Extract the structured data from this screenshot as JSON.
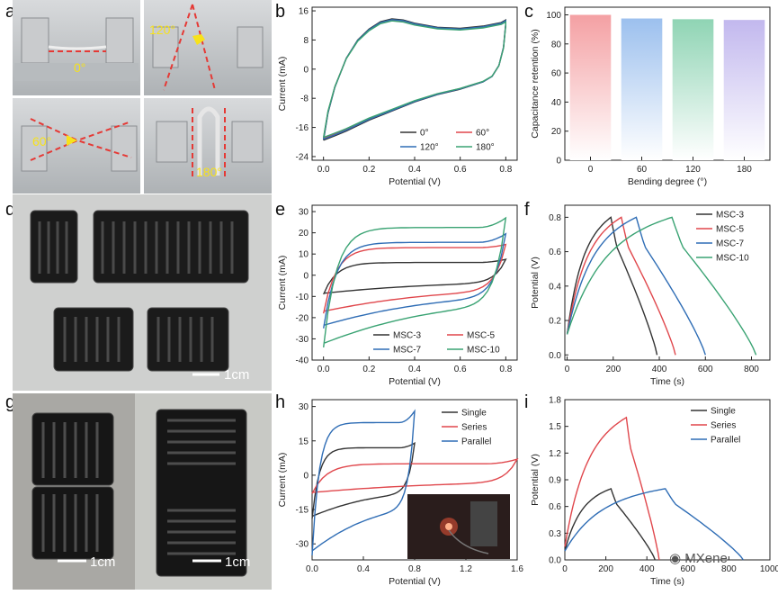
{
  "panels": {
    "a": "a",
    "b": "b",
    "c": "c",
    "d": "d",
    "e": "e",
    "f": "f",
    "g": "g",
    "h": "h",
    "i": "i"
  },
  "photos": {
    "a_angles": [
      "0°",
      "120°",
      "60°",
      "180°"
    ],
    "d_scale": "1cm",
    "g_scale_left": "1cm",
    "g_scale_right": "1cm"
  },
  "watermark": "MXene",
  "colors": {
    "black": "#333333",
    "red": "#e0474c",
    "blue": "#2f6db5",
    "green": "#3aa373",
    "bar_red": "#f4a0a3",
    "bar_blue": "#9cc0ee",
    "bar_green": "#8fd4b4",
    "bar_purple": "#c2b8ee"
  },
  "chart_data": [
    {
      "id": "b",
      "type": "line",
      "xlabel": "Potential (V)",
      "ylabel": "Current (mA)",
      "xlim": [
        -0.05,
        0.85
      ],
      "ylim": [
        -25,
        17
      ],
      "xticks": [
        0.0,
        0.2,
        0.4,
        0.6,
        0.8
      ],
      "yticks": [
        -24,
        -16,
        -8,
        0,
        8,
        16
      ],
      "xtick_labels": [
        "0.0",
        "0.2",
        "0.4",
        "0.6",
        "0.8"
      ],
      "ytick_labels": [
        "-24",
        "-16",
        "-8",
        "0",
        "8",
        "16"
      ],
      "legend": "bottom-right",
      "series": [
        {
          "name": "0°",
          "color": "#333333",
          "scale": 1.0
        },
        {
          "name": "60°",
          "color": "#e0474c",
          "scale": 0.97
        },
        {
          "name": "120°",
          "color": "#2f6db5",
          "scale": 0.985
        },
        {
          "name": "180°",
          "color": "#3aa373",
          "scale": 0.96
        }
      ],
      "upper": [
        [
          0.0,
          -19.5
        ],
        [
          0.02,
          -12
        ],
        [
          0.05,
          -5
        ],
        [
          0.1,
          3
        ],
        [
          0.15,
          8
        ],
        [
          0.2,
          11
        ],
        [
          0.25,
          13
        ],
        [
          0.3,
          13.8
        ],
        [
          0.35,
          13.5
        ],
        [
          0.4,
          12.6
        ],
        [
          0.5,
          11.5
        ],
        [
          0.6,
          11.2
        ],
        [
          0.7,
          11.8
        ],
        [
          0.78,
          12.8
        ],
        [
          0.8,
          13.5
        ]
      ],
      "lower": [
        [
          0.8,
          12.5
        ],
        [
          0.79,
          6
        ],
        [
          0.77,
          1
        ],
        [
          0.74,
          -2
        ],
        [
          0.7,
          -3.5
        ],
        [
          0.6,
          -5.5
        ],
        [
          0.5,
          -7
        ],
        [
          0.4,
          -9
        ],
        [
          0.3,
          -11.5
        ],
        [
          0.2,
          -14
        ],
        [
          0.1,
          -17
        ],
        [
          0.05,
          -18.3
        ],
        [
          0.0,
          -19.5
        ]
      ]
    },
    {
      "id": "c",
      "type": "bar",
      "xlabel": "Bending degree (°)",
      "ylabel": "Capacitance retention (%)",
      "categories": [
        "0",
        "60",
        "120",
        "180"
      ],
      "values": [
        100,
        97.5,
        97,
        96.5
      ],
      "ylim": [
        0,
        100
      ],
      "yticks": [
        0,
        20,
        40,
        60,
        80,
        100
      ],
      "colors": [
        "#f4a0a3",
        "#9cc0ee",
        "#8fd4b4",
        "#c2b8ee"
      ]
    },
    {
      "id": "e",
      "type": "line",
      "xlabel": "Potential (V)",
      "ylabel": "Current (mA)",
      "xlim": [
        -0.05,
        0.85
      ],
      "ylim": [
        -40,
        33
      ],
      "xticks": [
        0.0,
        0.2,
        0.4,
        0.6,
        0.8
      ],
      "yticks": [
        -40,
        -30,
        -20,
        -10,
        0,
        10,
        20,
        30
      ],
      "xtick_labels": [
        "0.0",
        "0.2",
        "0.4",
        "0.6",
        "0.8"
      ],
      "ytick_labels": [
        "-40",
        "-30",
        "-20",
        "-10",
        "0",
        "10",
        "20",
        "30"
      ],
      "legend": "bottom-right",
      "series": [
        {
          "name": "MSC-3",
          "color": "#333333",
          "top": 6,
          "bot": -9,
          "tail": 7.5,
          "start": 2.5
        },
        {
          "name": "MSC-5",
          "color": "#e0474c",
          "top": 13,
          "bot": -18,
          "tail": 14.5,
          "start": 4
        },
        {
          "name": "MSC-7",
          "color": "#2f6db5",
          "top": 15.5,
          "bot": -25,
          "tail": 19.5,
          "start": 5
        },
        {
          "name": "MSC-10",
          "color": "#3aa373",
          "top": 22.5,
          "bot": -34,
          "tail": 27,
          "start": 7
        }
      ]
    },
    {
      "id": "f",
      "type": "line",
      "xlabel": "Time (s)",
      "ylabel": "Potential (V)",
      "xlim": [
        -10,
        880
      ],
      "ylim": [
        -0.03,
        0.87
      ],
      "xticks": [
        0,
        200,
        400,
        600,
        800
      ],
      "yticks": [
        0.0,
        0.2,
        0.4,
        0.6,
        0.8
      ],
      "xtick_labels": [
        "0",
        "200",
        "400",
        "600",
        "800"
      ],
      "ytick_labels": [
        "0.0",
        "0.2",
        "0.4",
        "0.6",
        "0.8"
      ],
      "legend": "top-right",
      "series": [
        {
          "name": "MSC-3",
          "color": "#333333",
          "peak": 190,
          "end": 390
        },
        {
          "name": "MSC-5",
          "color": "#e0474c",
          "peak": 235,
          "end": 470
        },
        {
          "name": "MSC-7",
          "color": "#2f6db5",
          "peak": 300,
          "end": 600
        },
        {
          "name": "MSC-10",
          "color": "#3aa373",
          "peak": 455,
          "end": 820
        }
      ]
    },
    {
      "id": "h",
      "type": "line",
      "xlabel": "Potential (V)",
      "ylabel": "Current (mA)",
      "xlim": [
        0,
        1.6
      ],
      "ylim": [
        -37,
        33
      ],
      "xticks": [
        0.0,
        0.4,
        0.8,
        1.2,
        1.6
      ],
      "yticks": [
        -30,
        -15,
        0,
        15,
        30
      ],
      "xtick_labels": [
        "0.0",
        "0.4",
        "0.8",
        "1.2",
        "1.6"
      ],
      "ytick_labels": [
        "-30",
        "-15",
        "0",
        "15",
        "30"
      ],
      "legend": "top-right",
      "series": [
        {
          "name": "Single",
          "color": "#333333",
          "vmax": 0.8,
          "top": 12,
          "bot": -19,
          "tail": 14,
          "start": 0
        },
        {
          "name": "Series",
          "color": "#e0474c",
          "vmax": 1.6,
          "top": 5,
          "bot": -8,
          "tail": 7,
          "start": 0
        },
        {
          "name": "Parallel",
          "color": "#2f6db5",
          "vmax": 0.8,
          "top": 23,
          "bot": -35,
          "tail": 28,
          "start": 0
        }
      ]
    },
    {
      "id": "i",
      "type": "line",
      "xlabel": "Time (s)",
      "ylabel": "Potential (V)",
      "xlim": [
        0,
        1000
      ],
      "ylim": [
        0,
        1.8
      ],
      "xticks": [
        0,
        200,
        400,
        600,
        800,
        1000
      ],
      "yticks": [
        0.0,
        0.3,
        0.6,
        0.9,
        1.2,
        1.5,
        1.8
      ],
      "xtick_labels": [
        "0",
        "200",
        "400",
        "600",
        "800",
        "1000"
      ],
      "ytick_labels": [
        "0.0",
        "0.3",
        "0.6",
        "0.9",
        "1.2",
        "1.5",
        "1.8"
      ],
      "legend": "top-right",
      "series": [
        {
          "name": "Single",
          "color": "#333333",
          "peak": 225,
          "end": 440,
          "vmax": 0.8,
          "vstart": 0.1
        },
        {
          "name": "Series",
          "color": "#e0474c",
          "peak": 300,
          "end": 460,
          "vmax": 1.6,
          "vstart": 0.15
        },
        {
          "name": "Parallel",
          "color": "#2f6db5",
          "peak": 490,
          "end": 870,
          "vmax": 0.8,
          "vstart": 0.1
        }
      ]
    }
  ]
}
